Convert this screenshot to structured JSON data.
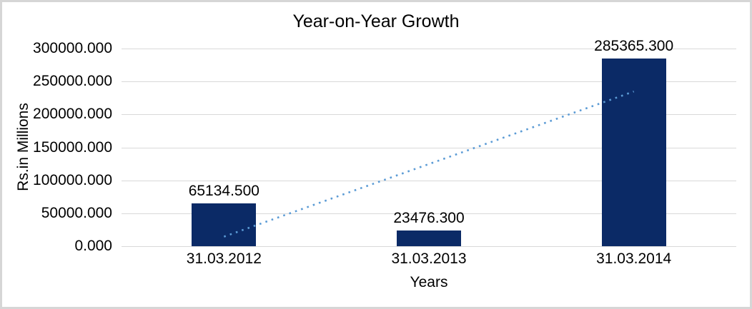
{
  "canvas": {
    "background": "#ffffff",
    "border_color": "#d6d6d6"
  },
  "chart_data": {
    "type": "bar",
    "title": "Year-on-Year Growth",
    "xlabel": "Years",
    "ylabel": "Rs.in Millions",
    "categories": [
      "31.03.2012",
      "31.03.2013",
      "31.03.2014"
    ],
    "values": [
      65134.5,
      23476.3,
      285365.3
    ],
    "data_labels": [
      "65134.500",
      "23476.300",
      "285365.300"
    ],
    "ylim": [
      0,
      300000
    ],
    "ytick_step": 50000,
    "ytick_labels": [
      "0.000",
      "50000.000",
      "100000.000",
      "150000.000",
      "200000.000",
      "250000.000",
      "300000.000"
    ],
    "grid": true,
    "legend": "none",
    "bar_color": "#0b2a66",
    "gridline_color": "#d9d9d9",
    "text_color": "#000000",
    "trendline": {
      "type": "linear",
      "style": "dotted",
      "color": "#5b9bd5",
      "value_at_first_category": 14500,
      "value_at_last_category": 234800
    }
  }
}
